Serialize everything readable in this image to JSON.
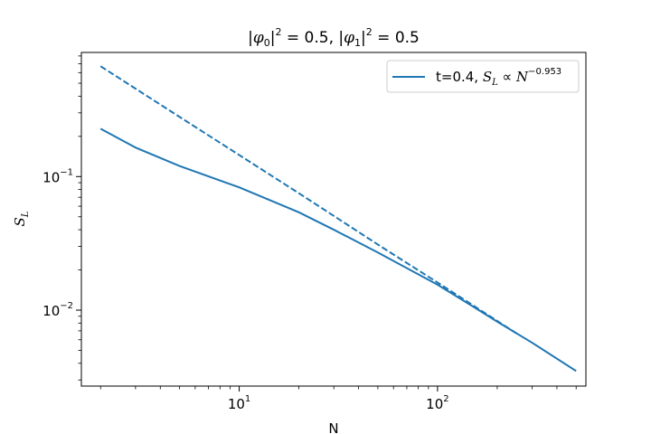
{
  "chart_data": {
    "type": "line",
    "title": {
      "abs_open": "|",
      "phi": "φ",
      "sub0": "0",
      "sub1": "1",
      "abs_close_sq": "|",
      "sq": "2",
      "eq_val": " = 0.5, ",
      "eq_val_end": " = 0.5"
    },
    "xlabel": "N",
    "ylabel": {
      "base": "S",
      "sub": "L"
    },
    "xscale": "log",
    "yscale": "log",
    "xlim": [
      1.6,
      560
    ],
    "ylim": [
      0.0027,
      0.85
    ],
    "x_ticks": [
      {
        "value": 10,
        "base": "10",
        "exp": "1"
      },
      {
        "value": 100,
        "base": "10",
        "exp": "2"
      }
    ],
    "y_ticks": [
      {
        "value": 0.1,
        "base": "10",
        "exp": "−1"
      },
      {
        "value": 0.01,
        "base": "10",
        "exp": "−2"
      }
    ],
    "grid": false,
    "legend_position": "top-right",
    "legend": {
      "prefix": "t=0.4, ",
      "s": "S",
      "s_sub": "L",
      "prop": " ∝ ",
      "n": "N",
      "exp": "−0.953"
    },
    "color": "#1f77b4",
    "series": [
      {
        "style": "solid",
        "x": [
          2,
          3,
          5,
          10,
          20,
          30,
          50,
          100,
          150,
          200,
          300,
          500
        ],
        "y": [
          0.228,
          0.165,
          0.12,
          0.083,
          0.054,
          0.04,
          0.027,
          0.0155,
          0.0107,
          0.0082,
          0.0057,
          0.0035
        ]
      },
      {
        "style": "dashed",
        "x": [
          2,
          5,
          10,
          20,
          50,
          100,
          200,
          250
        ],
        "y": [
          0.67,
          0.28,
          0.145,
          0.075,
          0.031,
          0.0161,
          0.0083,
          0.0067
        ]
      }
    ]
  }
}
